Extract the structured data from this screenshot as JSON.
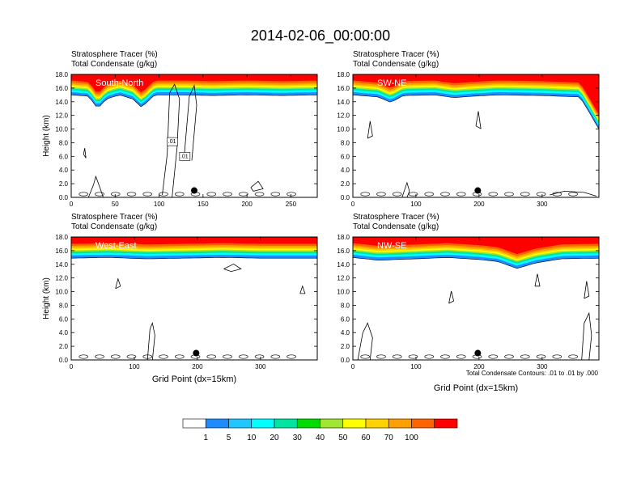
{
  "chart_data": {
    "type": "heatmap",
    "title": "2014-02-06_00:00:00",
    "footnote": "Total Condensate Contours: .01 to .01 by .000",
    "colorbar": {
      "levels": [
        "1",
        "5",
        "10",
        "20",
        "30",
        "40",
        "50",
        "60",
        "70",
        "100"
      ],
      "colors": [
        "#ffffff",
        "#1e8cff",
        "#1ec8ff",
        "#00ffff",
        "#00e6a0",
        "#00dc00",
        "#a0e632",
        "#ffff00",
        "#ffd200",
        "#ffa000",
        "#ff6400",
        "#ff0000"
      ]
    },
    "panels": [
      {
        "id": "south-north",
        "label": "South-North",
        "subtitle_1": "Stratosphere Tracer   (%)",
        "subtitle_2": "Total Condensate   (g/kg)",
        "ylabel": "Height (km)",
        "xlabel": "",
        "xlim": [
          0,
          280
        ],
        "ylim": [
          0,
          18
        ],
        "xticks": [
          0,
          50,
          100,
          150,
          200,
          250
        ],
        "yticks": [
          "0.0",
          "2.0",
          "4.0",
          "6.0",
          "8.0",
          "10.0",
          "12.0",
          "14.0",
          "16.0",
          "18.0"
        ],
        "tropopause_km": [
          [
            0,
            15.6
          ],
          [
            20,
            15.4
          ],
          [
            30,
            13.6
          ],
          [
            40,
            15.0
          ],
          [
            55,
            15.6
          ],
          [
            70,
            15.0
          ],
          [
            80,
            13.8
          ],
          [
            95,
            15.6
          ],
          [
            130,
            15.6
          ],
          [
            160,
            15.5
          ],
          [
            200,
            15.6
          ],
          [
            240,
            15.5
          ],
          [
            280,
            15.6
          ]
        ],
        "marker_x": 140,
        "marker_y": 1.0,
        "contour_labels": [
          ".01",
          ".01"
        ]
      },
      {
        "id": "sw-ne",
        "label": "SW-NE",
        "subtitle_1": "Stratosphere Tracer   (%)",
        "subtitle_2": "Total Condensate   (g/kg)",
        "ylabel": "",
        "xlabel": "",
        "xlim": [
          0,
          390
        ],
        "ylim": [
          0,
          18
        ],
        "xticks": [
          0,
          100,
          200,
          300
        ],
        "yticks": [
          "0.0",
          "2.0",
          "4.0",
          "6.0",
          "8.0",
          "10.0",
          "12.0",
          "14.0",
          "16.0",
          "18.0"
        ],
        "tropopause_km": [
          [
            0,
            15.6
          ],
          [
            40,
            15.3
          ],
          [
            60,
            14.5
          ],
          [
            80,
            15.5
          ],
          [
            130,
            15.6
          ],
          [
            160,
            15.2
          ],
          [
            190,
            15.4
          ],
          [
            230,
            15.6
          ],
          [
            300,
            15.5
          ],
          [
            360,
            15.3
          ],
          [
            375,
            13.0
          ],
          [
            390,
            10.6
          ]
        ],
        "marker_x": 198,
        "marker_y": 1.0,
        "contour_labels": []
      },
      {
        "id": "west-east",
        "label": "West-East",
        "subtitle_1": "Stratosphere Tracer   (%)",
        "subtitle_2": "Total Condensate   (g/kg)",
        "ylabel": "Height (km)",
        "xlabel": "Grid Point (dx=15km)",
        "xlim": [
          0,
          390
        ],
        "ylim": [
          0,
          18
        ],
        "xticks": [
          0,
          100,
          200,
          300
        ],
        "yticks": [
          "0.0",
          "2.0",
          "4.0",
          "6.0",
          "8.0",
          "10.0",
          "12.0",
          "14.0",
          "16.0",
          "18.0"
        ],
        "tropopause_km": [
          [
            0,
            15.5
          ],
          [
            60,
            15.6
          ],
          [
            120,
            15.4
          ],
          [
            180,
            15.5
          ],
          [
            240,
            15.6
          ],
          [
            300,
            15.5
          ],
          [
            390,
            15.5
          ]
        ],
        "marker_x": 198,
        "marker_y": 1.0,
        "contour_labels": []
      },
      {
        "id": "nw-se",
        "label": "NW-SE",
        "subtitle_1": "Stratosphere Tracer   (%)",
        "subtitle_2": "Total Condensate   (g/kg)",
        "ylabel": "",
        "xlabel": "Grid Point (dx=15km)",
        "xlim": [
          0,
          390
        ],
        "ylim": [
          0,
          18
        ],
        "xticks": [
          0,
          100,
          200,
          300
        ],
        "yticks": [
          "0.0",
          "2.0",
          "4.0",
          "6.0",
          "8.0",
          "10.0",
          "12.0",
          "14.0",
          "16.0",
          "18.0"
        ],
        "tropopause_km": [
          [
            0,
            15.6
          ],
          [
            40,
            15.2
          ],
          [
            100,
            15.4
          ],
          [
            150,
            15.6
          ],
          [
            200,
            15.3
          ],
          [
            230,
            15.0
          ],
          [
            260,
            14.0
          ],
          [
            290,
            14.8
          ],
          [
            330,
            15.4
          ],
          [
            390,
            15.5
          ]
        ],
        "marker_x": 198,
        "marker_y": 1.0,
        "contour_labels": []
      }
    ]
  }
}
